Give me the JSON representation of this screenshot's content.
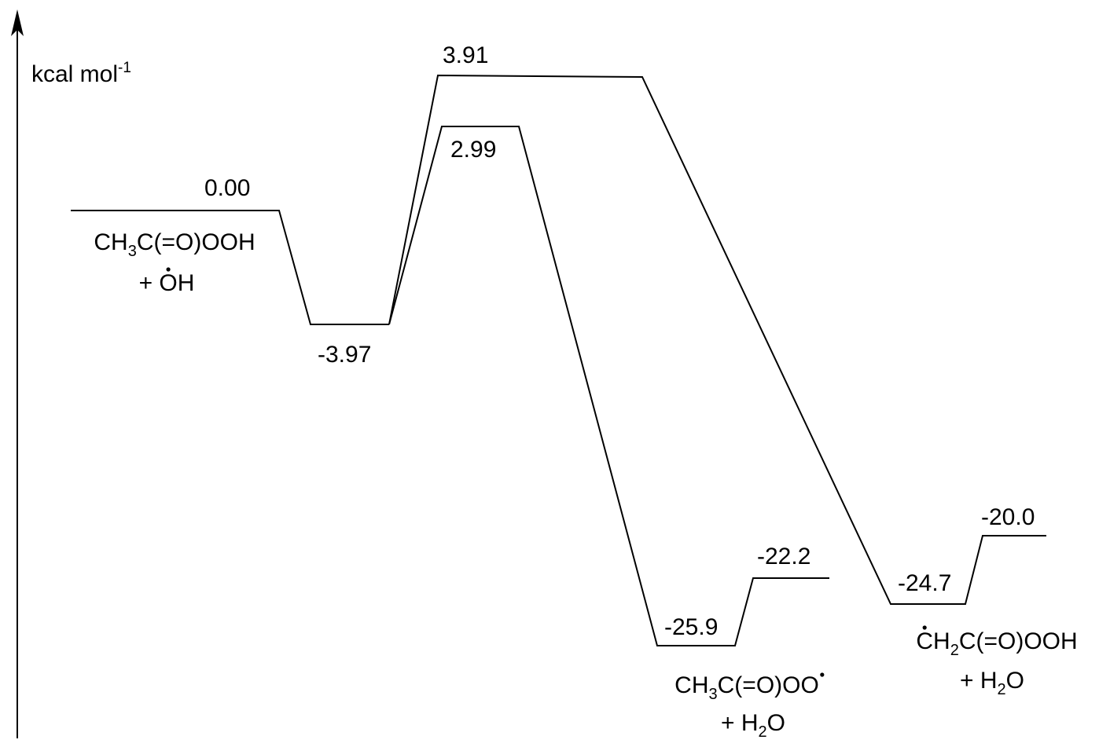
{
  "axis": {
    "unit_label": "kcal mol",
    "unit_superscript": "-1"
  },
  "levels": {
    "reactants": "0.00",
    "complex": "-3.97",
    "ts_upper": "3.91",
    "ts_lower": "2.99",
    "product_a_complex": "-25.9",
    "product_a": "-22.2",
    "product_b_complex": "-24.7",
    "product_b": "-20.0"
  },
  "species": {
    "reactants_line1": [
      {
        "t": "CH"
      },
      {
        "t": "3",
        "sub": true
      },
      {
        "t": "C(=O)OOH"
      }
    ],
    "reactants_line2": [
      {
        "t": "+ "
      },
      {
        "t": "OH",
        "dot": true
      }
    ],
    "product_a_line1": [
      {
        "t": "CH"
      },
      {
        "t": "3",
        "sub": true
      },
      {
        "t": "C(=O)OO",
        "dotAfter": true
      }
    ],
    "product_a_line2": [
      {
        "t": "+ H"
      },
      {
        "t": "2",
        "sub": true
      },
      {
        "t": "O"
      }
    ],
    "product_b_line1": [
      {
        "t": "CH",
        "dot": true
      },
      {
        "t": "2",
        "sub": true
      },
      {
        "t": "C(=O)OOH"
      }
    ],
    "product_b_line2": [
      {
        "t": "+ H"
      },
      {
        "t": "2",
        "sub": true
      },
      {
        "t": "O"
      }
    ]
  }
}
